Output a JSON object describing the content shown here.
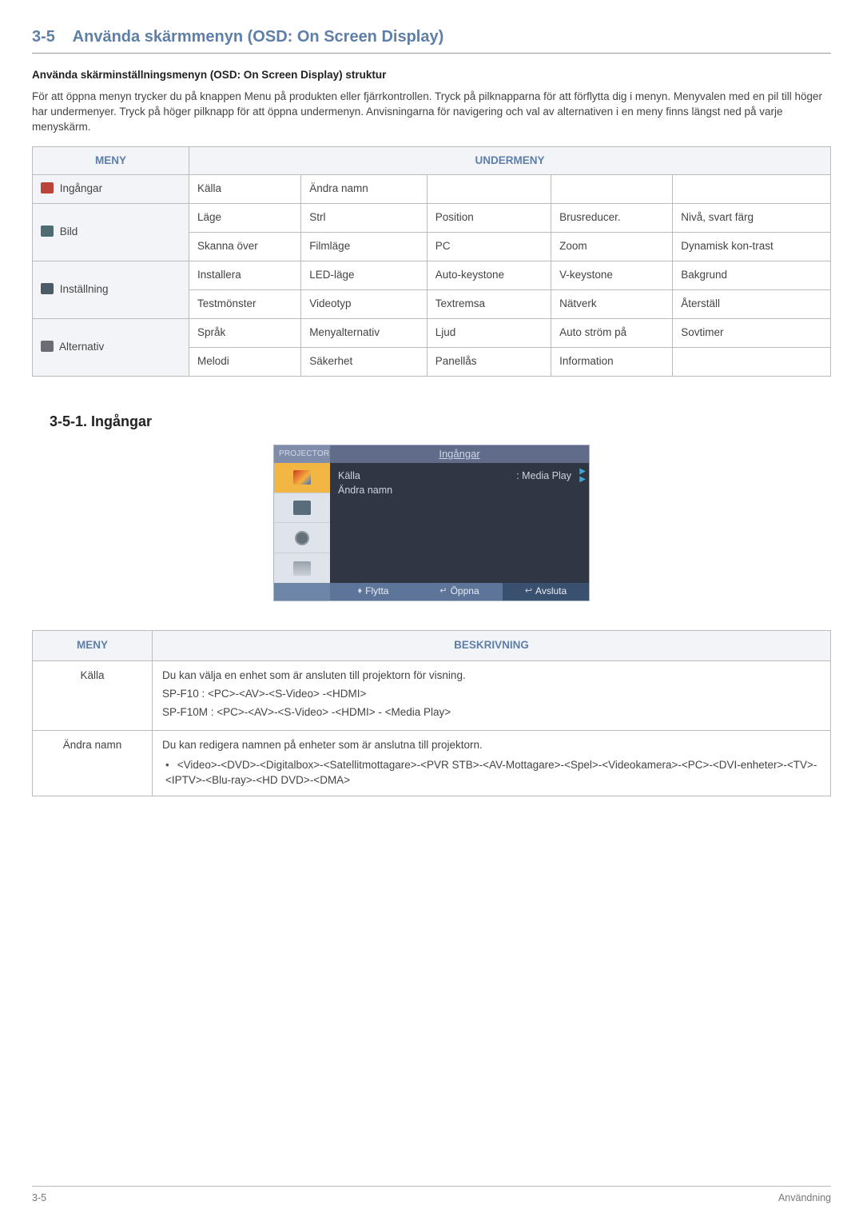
{
  "header": {
    "section_number": "3-5",
    "section_title": "Använda skärmmenyn (OSD: On Screen Display)",
    "sub_heading": "Använda skärminställningsmenyn (OSD: On Screen Display) struktur",
    "intro": "För att öppna menyn trycker du på knappen Menu på produkten eller fjärrkontrollen. Tryck på pilknapparna för att förflytta dig i menyn. Menyvalen med en pil till höger har undermenyer. Tryck på höger pilknapp för att öppna undermenyn. Anvisningarna för navigering och val av alternativen i en meny finns längst ned på varje menyskärm."
  },
  "menu_table": {
    "col_menu": "MENY",
    "col_sub": "UNDERMENY",
    "rows": {
      "ingangar": {
        "label": "Ingångar",
        "cells": [
          "Källa",
          "Ändra namn",
          "",
          "",
          ""
        ]
      },
      "bild": {
        "label": "Bild",
        "row1": [
          "Läge",
          "Strl",
          "Position",
          "Brusreducer.",
          "Nivå, svart färg"
        ],
        "row2": [
          "Skanna över",
          "Filmläge",
          "PC",
          "Zoom",
          "Dynamisk kon-trast"
        ]
      },
      "installning": {
        "label": "Inställning",
        "row1": [
          "Installera",
          "LED-läge",
          "Auto-keystone",
          "V-keystone",
          "Bakgrund"
        ],
        "row2": [
          "Testmönster",
          "Videotyp",
          "Textremsa",
          "Nätverk",
          "Återställ"
        ]
      },
      "alternativ": {
        "label": "Alternativ",
        "row1": [
          "Språk",
          "Menyalternativ",
          "Ljud",
          "Auto ström på",
          "Sovtimer"
        ],
        "row2": [
          "Melodi",
          "Säkerhet",
          "Panellås",
          "Information",
          ""
        ]
      }
    }
  },
  "subsection_title": "3-5-1. Ingångar",
  "osd": {
    "projector": "PROJECTOR",
    "title": "Ingångar",
    "kalla": "Källa",
    "andra": "Ändra namn",
    "value": ": Media Play",
    "move": "Flytta",
    "open": "Öppna",
    "exit": "Avsluta"
  },
  "desc_table": {
    "col_menu": "MENY",
    "col_desc": "BESKRIVNING",
    "kalla": {
      "name": "Källa",
      "l1": "Du kan välja en enhet som är ansluten till projektorn för visning.",
      "l2": "SP-F10 : <PC>-<AV>-<S-Video> -<HDMI>",
      "l3": "SP-F10M : <PC>-<AV>-<S-Video> -<HDMI> - <Media Play>"
    },
    "andra": {
      "name": "Ändra namn",
      "l1": "Du kan redigera namnen på enheter som är anslutna till projektorn.",
      "bullet": "<Video>-<DVD>-<Digitalbox>-<Satellitmottagare>-<PVR STB>-<AV-Mottagare>-<Spel>-<Videokamera>-<PC>-<DVI-enheter>-<TV>-<IPTV>-<Blu-ray>-<HD DVD>-<DMA>"
    }
  },
  "footer": {
    "left": "3-5",
    "right": "Användning"
  }
}
